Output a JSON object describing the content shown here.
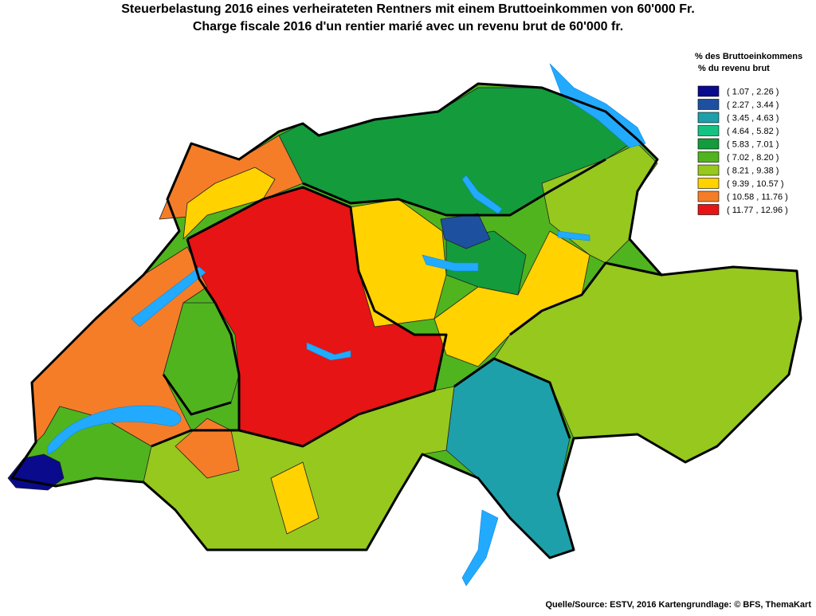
{
  "header": {
    "title_de": "Steuerbelastung 2016 eines verheirateten Rentners mit einem Bruttoeinkommen von 60'000 Fr.",
    "title_fr": "Charge fiscale 2016 d'un rentier marié avec un revenu brut de 60'000 fr."
  },
  "legend": {
    "title_de": "% des Bruttoeinkommens",
    "title_fr": "% du revenu brut",
    "items": [
      {
        "label": "( 1.07 , 2.26 )",
        "color": "#0a0a8c"
      },
      {
        "label": "( 2.27 , 3.44 )",
        "color": "#1e50a0"
      },
      {
        "label": "( 3.45 , 4.63 )",
        "color": "#1ea0aa"
      },
      {
        "label": "( 4.64 , 5.82 )",
        "color": "#14c382"
      },
      {
        "label": "( 5.83 , 7.01 )",
        "color": "#149b3c"
      },
      {
        "label": "( 7.02 , 8.20 )",
        "color": "#50b41e"
      },
      {
        "label": "( 8.21 , 9.38 )",
        "color": "#96c81e"
      },
      {
        "label": "( 9.39 , 10.57 )",
        "color": "#ffd200"
      },
      {
        "label": "( 10.58 , 11.76 )",
        "color": "#f57d28"
      },
      {
        "label": "( 11.77 , 12.96 )",
        "color": "#e61414"
      }
    ]
  },
  "source": "Quelle/Source: ESTV, 2016 Kartengrundlage: © BFS, ThemaKart"
}
